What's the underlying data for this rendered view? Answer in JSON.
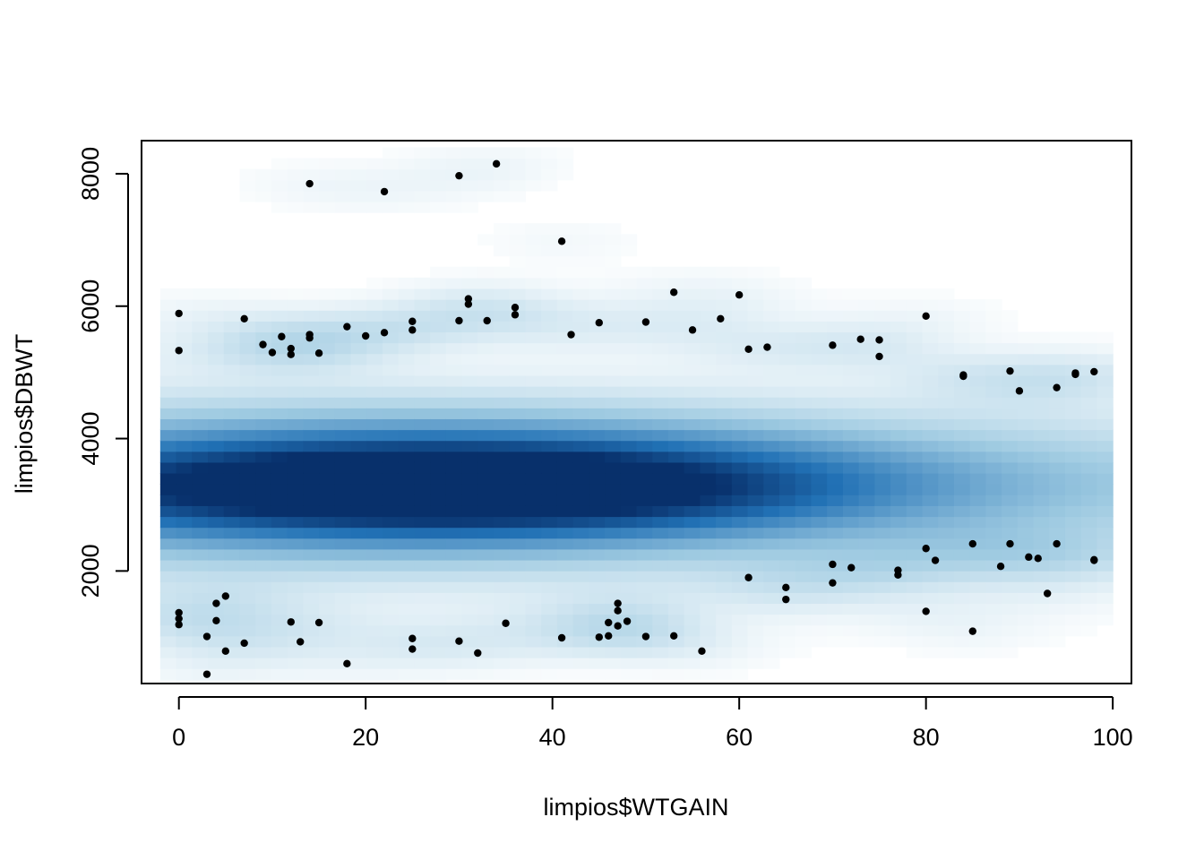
{
  "chart_data": {
    "type": "scatter",
    "render_style": "smoothScatter",
    "title": "",
    "xlabel": "limpios$WTGAIN",
    "ylabel": "limpios$DBWT",
    "xlim": [
      -4,
      102
    ],
    "ylim": [
      300,
      8500
    ],
    "x_ticks": [
      0,
      20,
      40,
      60,
      80,
      100
    ],
    "x_tick_labels": [
      "0",
      "20",
      "40",
      "60",
      "80",
      "100"
    ],
    "y_ticks": [
      2000,
      4000,
      6000,
      8000
    ],
    "y_tick_labels": [
      "2000",
      "4000",
      "6000",
      "8000"
    ],
    "grid": false,
    "density_color_low": "#ffffff",
    "density_color_high": "#08306b",
    "point_color": "#000000",
    "density_peak": {
      "x": 30,
      "y": 3300
    },
    "outlier_points": [
      {
        "x": 0,
        "y": 5890
      },
      {
        "x": 0,
        "y": 5330
      },
      {
        "x": 7,
        "y": 5810
      },
      {
        "x": 9,
        "y": 5420
      },
      {
        "x": 10,
        "y": 5300
      },
      {
        "x": 11,
        "y": 5540
      },
      {
        "x": 12,
        "y": 5360
      },
      {
        "x": 12,
        "y": 5270
      },
      {
        "x": 14,
        "y": 5570
      },
      {
        "x": 14,
        "y": 5520
      },
      {
        "x": 15,
        "y": 5290
      },
      {
        "x": 14,
        "y": 7850
      },
      {
        "x": 18,
        "y": 5690
      },
      {
        "x": 20,
        "y": 5550
      },
      {
        "x": 22,
        "y": 5600
      },
      {
        "x": 22,
        "y": 7730
      },
      {
        "x": 25,
        "y": 5770
      },
      {
        "x": 25,
        "y": 5640
      },
      {
        "x": 30,
        "y": 5780
      },
      {
        "x": 30,
        "y": 7970
      },
      {
        "x": 31,
        "y": 6110
      },
      {
        "x": 31,
        "y": 6030
      },
      {
        "x": 33,
        "y": 5780
      },
      {
        "x": 34,
        "y": 8150
      },
      {
        "x": 36,
        "y": 5980
      },
      {
        "x": 36,
        "y": 5870
      },
      {
        "x": 41,
        "y": 6980
      },
      {
        "x": 42,
        "y": 5570
      },
      {
        "x": 45,
        "y": 5750
      },
      {
        "x": 50,
        "y": 5760
      },
      {
        "x": 53,
        "y": 6210
      },
      {
        "x": 55,
        "y": 5640
      },
      {
        "x": 58,
        "y": 5810
      },
      {
        "x": 60,
        "y": 6170
      },
      {
        "x": 61,
        "y": 5350
      },
      {
        "x": 63,
        "y": 5380
      },
      {
        "x": 70,
        "y": 5410
      },
      {
        "x": 73,
        "y": 5500
      },
      {
        "x": 75,
        "y": 5490
      },
      {
        "x": 75,
        "y": 5240
      },
      {
        "x": 80,
        "y": 5850
      },
      {
        "x": 84,
        "y": 4960
      },
      {
        "x": 84,
        "y": 4940
      },
      {
        "x": 89,
        "y": 5020
      },
      {
        "x": 90,
        "y": 4720
      },
      {
        "x": 94,
        "y": 4770
      },
      {
        "x": 96,
        "y": 4990
      },
      {
        "x": 96,
        "y": 4970
      },
      {
        "x": 98,
        "y": 5010
      },
      {
        "x": 0,
        "y": 1370
      },
      {
        "x": 0,
        "y": 1280
      },
      {
        "x": 0,
        "y": 1190
      },
      {
        "x": 3,
        "y": 1010
      },
      {
        "x": 3,
        "y": 440
      },
      {
        "x": 4,
        "y": 1510
      },
      {
        "x": 4,
        "y": 1250
      },
      {
        "x": 5,
        "y": 1620
      },
      {
        "x": 5,
        "y": 790
      },
      {
        "x": 7,
        "y": 910
      },
      {
        "x": 12,
        "y": 1230
      },
      {
        "x": 13,
        "y": 930
      },
      {
        "x": 15,
        "y": 1220
      },
      {
        "x": 18,
        "y": 600
      },
      {
        "x": 25,
        "y": 980
      },
      {
        "x": 25,
        "y": 820
      },
      {
        "x": 30,
        "y": 940
      },
      {
        "x": 32,
        "y": 760
      },
      {
        "x": 35,
        "y": 1210
      },
      {
        "x": 41,
        "y": 990
      },
      {
        "x": 45,
        "y": 1000
      },
      {
        "x": 46,
        "y": 1020
      },
      {
        "x": 46,
        "y": 1220
      },
      {
        "x": 47,
        "y": 1510
      },
      {
        "x": 47,
        "y": 1400
      },
      {
        "x": 47,
        "y": 1170
      },
      {
        "x": 48,
        "y": 1240
      },
      {
        "x": 50,
        "y": 1010
      },
      {
        "x": 53,
        "y": 1020
      },
      {
        "x": 56,
        "y": 790
      },
      {
        "x": 61,
        "y": 1900
      },
      {
        "x": 65,
        "y": 1750
      },
      {
        "x": 65,
        "y": 1570
      },
      {
        "x": 70,
        "y": 2100
      },
      {
        "x": 70,
        "y": 1820
      },
      {
        "x": 72,
        "y": 2050
      },
      {
        "x": 77,
        "y": 2010
      },
      {
        "x": 77,
        "y": 1940
      },
      {
        "x": 80,
        "y": 2340
      },
      {
        "x": 80,
        "y": 1390
      },
      {
        "x": 81,
        "y": 2160
      },
      {
        "x": 85,
        "y": 2410
      },
      {
        "x": 85,
        "y": 1090
      },
      {
        "x": 88,
        "y": 2070
      },
      {
        "x": 89,
        "y": 2410
      },
      {
        "x": 91,
        "y": 2210
      },
      {
        "x": 92,
        "y": 2190
      },
      {
        "x": 93,
        "y": 1660
      },
      {
        "x": 94,
        "y": 2410
      },
      {
        "x": 98,
        "y": 2170
      },
      {
        "x": 98,
        "y": 2160
      }
    ]
  }
}
